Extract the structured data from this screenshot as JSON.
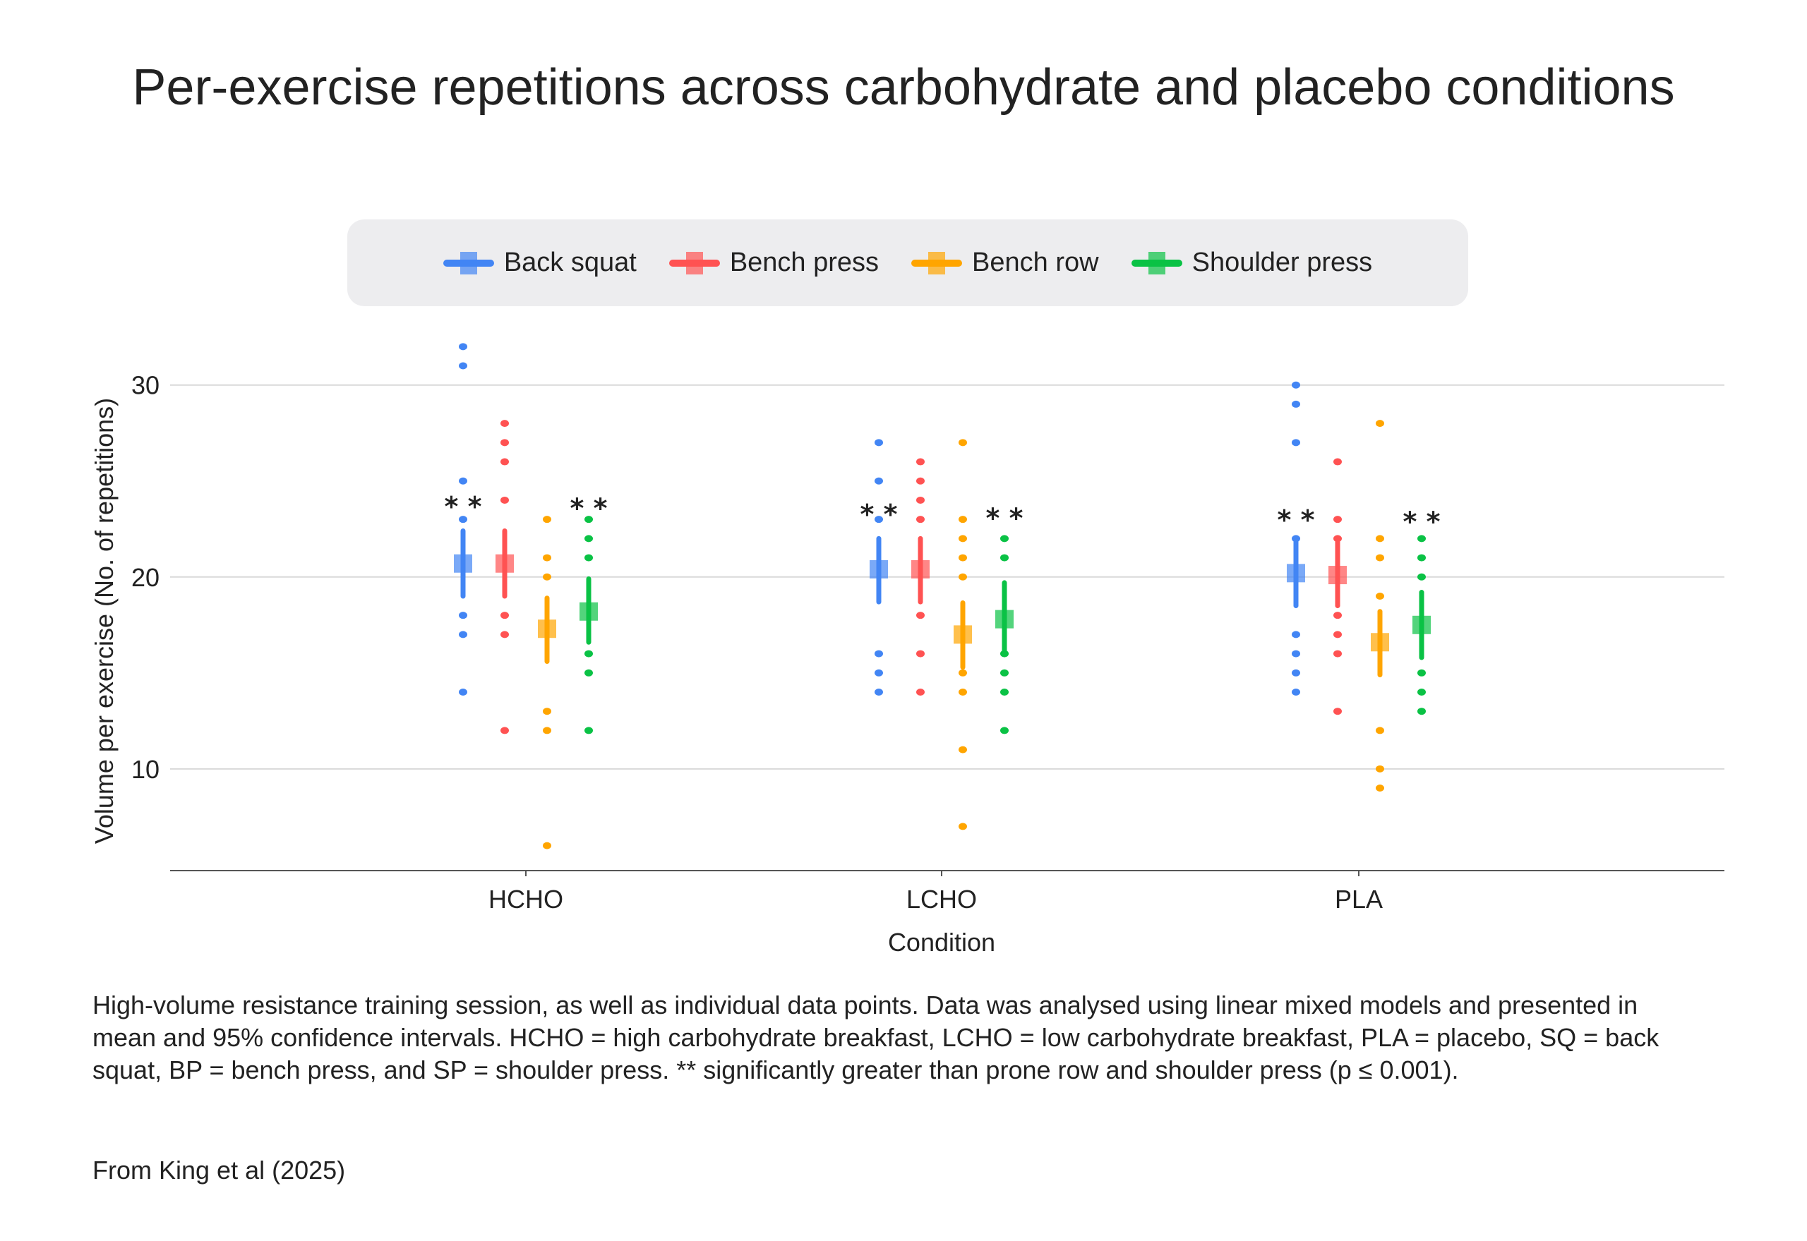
{
  "chart_data": {
    "type": "scatter",
    "title": "Per-exercise repetitions across carbohydrate and placebo conditions",
    "xlabel": "Condition",
    "ylabel": "Volume per exercise (No. of repetitions)",
    "categories": [
      "HCHO",
      "LCHO",
      "PLA"
    ],
    "ylim": [
      4.7,
      32.6
    ],
    "yticks": [
      10,
      20,
      30
    ],
    "grid": true,
    "legend_position": "top",
    "significance_label": "* *",
    "series": [
      {
        "name": "Back squat",
        "color": "#4285f4",
        "mean": [
          20.7,
          20.4,
          20.2
        ],
        "ci_low": [
          19.0,
          18.7,
          18.5
        ],
        "ci_high": [
          22.4,
          22.0,
          22.0
        ],
        "points": [
          [
            32,
            31,
            25,
            23,
            18,
            17,
            14
          ],
          [
            27,
            25,
            23,
            16,
            15,
            14
          ],
          [
            30,
            29,
            27,
            22,
            17,
            16,
            15,
            14
          ]
        ],
        "significance_y": [
          24.0,
          23.6,
          23.3
        ]
      },
      {
        "name": "Bench press",
        "color": "#ff5252",
        "mean": [
          20.7,
          20.4,
          20.1
        ],
        "ci_low": [
          19.0,
          18.7,
          18.5
        ],
        "ci_high": [
          22.4,
          22.0,
          22.0
        ],
        "points": [
          [
            28,
            27,
            26,
            24,
            18,
            17,
            12
          ],
          [
            26,
            25,
            24,
            23,
            18,
            16,
            14
          ],
          [
            26,
            23,
            22,
            18,
            17,
            16,
            13
          ]
        ]
      },
      {
        "name": "Bench row",
        "color": "#ffa500",
        "mean": [
          17.3,
          17.0,
          16.6
        ],
        "ci_low": [
          15.6,
          15.3,
          14.9
        ],
        "ci_high": [
          18.9,
          18.65,
          18.2
        ],
        "points": [
          [
            23,
            21,
            20,
            13,
            12,
            6
          ],
          [
            27,
            23,
            22,
            21,
            20,
            15,
            14,
            11,
            7
          ],
          [
            28,
            22,
            21,
            19,
            12,
            10,
            9
          ]
        ]
      },
      {
        "name": "Shoulder press",
        "color": "#0ac245",
        "mean": [
          18.2,
          17.8,
          17.5
        ],
        "ci_low": [
          16.6,
          16.0,
          15.8
        ],
        "ci_high": [
          19.9,
          19.7,
          19.2
        ],
        "points": [
          [
            23,
            22,
            21,
            16,
            15,
            12
          ],
          [
            22,
            21,
            16,
            15,
            14,
            12
          ],
          [
            22,
            21,
            20,
            15,
            14,
            13
          ]
        ],
        "significance_y": [
          23.9,
          23.4,
          23.2
        ]
      }
    ]
  },
  "caption": "High-volume resistance training session, as well as individual data points. Data was analysed using linear mixed models and presented in mean and 95% confidence intervals. HCHO = high carbohydrate breakfast, LCHO = low carbohydrate breakfast, PLA = placebo, SQ = back squat, BP = bench press, and SP = shoulder press. ** significantly greater than prone row and shoulder press (p ≤ 0.001).",
  "source": "From King et al (2025)"
}
